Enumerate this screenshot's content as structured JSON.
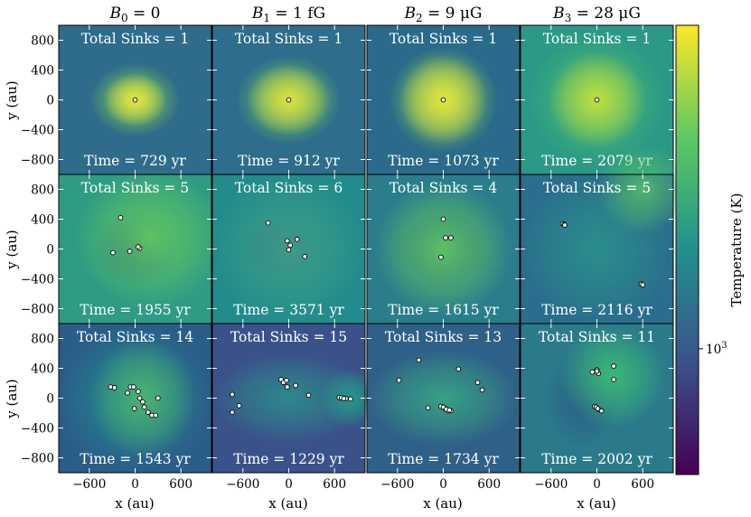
{
  "chart_data": {
    "type": "heatmap",
    "layout": {
      "rows": 3,
      "cols": 4
    },
    "column_titles": [
      "B_0 = 0",
      "B_1 = 1 fG",
      "B_2 = 9 μG",
      "B_3 = 28 μG"
    ],
    "column_title_parts": [
      {
        "sym": "B",
        "sub": "0",
        "rest": " = 0"
      },
      {
        "sym": "B",
        "sub": "1",
        "rest": " = 1 fG"
      },
      {
        "sym": "B",
        "sub": "2",
        "rest": " = 9 μG"
      },
      {
        "sym": "B",
        "sub": "3",
        "rest": " = 28 μG"
      }
    ],
    "xlabel": "x (au)",
    "ylabel": "y (au)",
    "xlim": [
      -1000,
      1000
    ],
    "ylim": [
      -1000,
      1000
    ],
    "xticks": [
      -600,
      0,
      600
    ],
    "yticks": [
      800,
      400,
      0,
      -400,
      -800
    ],
    "colorbar": {
      "label": "Temperature (K)",
      "scale": "log",
      "tick_label": "10",
      "tick_exp": "3",
      "tick_value": 1000,
      "colors": [
        "#440154",
        "#3b528b",
        "#21908d",
        "#5dc963",
        "#fde725"
      ]
    },
    "panels": [
      {
        "row": 0,
        "col": 0,
        "sinks_label": "Total Sinks = 1",
        "time_label": "Time = 729 yr",
        "sinks": [
          [
            0,
            0
          ]
        ]
      },
      {
        "row": 0,
        "col": 1,
        "sinks_label": "Total Sinks = 1",
        "time_label": "Time = 912 yr",
        "sinks": [
          [
            0,
            0
          ]
        ]
      },
      {
        "row": 0,
        "col": 2,
        "sinks_label": "Total Sinks = 1",
        "time_label": "Time = 1073 yr",
        "sinks": [
          [
            0,
            0
          ]
        ]
      },
      {
        "row": 0,
        "col": 3,
        "sinks_label": "Total Sinks = 1",
        "time_label": "Time = 2079 yr",
        "sinks": [
          [
            0,
            0
          ]
        ]
      },
      {
        "row": 1,
        "col": 0,
        "sinks_label": "Total Sinks = 5",
        "time_label": "Time = 1955 yr",
        "sinks": [
          [
            -190,
            420
          ],
          [
            -290,
            -50
          ],
          [
            -70,
            -30
          ],
          [
            60,
            10
          ],
          [
            40,
            30
          ]
        ]
      },
      {
        "row": 1,
        "col": 1,
        "sinks_label": "Total Sinks = 6",
        "time_label": "Time = 3571 yr",
        "sinks": [
          [
            -270,
            350
          ],
          [
            -20,
            110
          ],
          [
            110,
            130
          ],
          [
            20,
            50
          ],
          [
            0,
            -10
          ],
          [
            210,
            -100
          ]
        ]
      },
      {
        "row": 1,
        "col": 2,
        "sinks_label": "Total Sinks = 4",
        "time_label": "Time = 1615 yr",
        "sinks": [
          [
            0,
            400
          ],
          [
            30,
            150
          ],
          [
            100,
            150
          ],
          [
            -30,
            -110
          ]
        ]
      },
      {
        "row": 1,
        "col": 3,
        "sinks_label": "Total Sinks = 5",
        "time_label": "Time = 2116 yr",
        "sinks": [
          [
            -450,
            340
          ],
          [
            -430,
            330
          ],
          [
            -420,
            320
          ],
          [
            580,
            -470
          ],
          [
            600,
            -480
          ]
        ]
      },
      {
        "row": 2,
        "col": 0,
        "sinks_label": "Total Sinks = 14",
        "time_label": "Time = 1543 yr",
        "sinks": [
          [
            -320,
            150
          ],
          [
            -270,
            140
          ],
          [
            -60,
            150
          ],
          [
            -20,
            150
          ],
          [
            -100,
            70
          ],
          [
            40,
            90
          ],
          [
            300,
            0
          ],
          [
            100,
            -50
          ],
          [
            120,
            -120
          ],
          [
            -10,
            -140
          ],
          [
            170,
            -190
          ],
          [
            220,
            -230
          ],
          [
            270,
            -230
          ],
          [
            60,
            0
          ]
        ]
      },
      {
        "row": 2,
        "col": 1,
        "sinks_label": "Total Sinks = 15",
        "time_label": "Time = 1229 yr",
        "sinks": [
          [
            -740,
            50
          ],
          [
            -740,
            -190
          ],
          [
            -650,
            -100
          ],
          [
            -100,
            250
          ],
          [
            -20,
            150
          ],
          [
            90,
            170
          ],
          [
            260,
            40
          ],
          [
            660,
            10
          ],
          [
            700,
            0
          ],
          [
            750,
            -5
          ],
          [
            810,
            -10
          ],
          [
            -70,
            210
          ],
          [
            -30,
            240
          ],
          [
            690,
            5
          ],
          [
            720,
            -5
          ]
        ]
      },
      {
        "row": 2,
        "col": 2,
        "sinks_label": "Total Sinks = 13",
        "time_label": "Time = 1734 yr",
        "sinks": [
          [
            -580,
            240
          ],
          [
            -320,
            510
          ],
          [
            200,
            390
          ],
          [
            450,
            210
          ],
          [
            510,
            110
          ],
          [
            -200,
            -130
          ],
          [
            -30,
            -110
          ],
          [
            20,
            -140
          ],
          [
            60,
            -170
          ],
          [
            100,
            -170
          ],
          [
            0,
            -120
          ],
          [
            40,
            -150
          ],
          [
            80,
            -160
          ]
        ]
      },
      {
        "row": 2,
        "col": 3,
        "sinks_label": "Total Sinks = 11",
        "time_label": "Time = 2002 yr",
        "sinks": [
          [
            -60,
            350
          ],
          [
            0,
            380
          ],
          [
            20,
            330
          ],
          [
            220,
            430
          ],
          [
            220,
            250
          ],
          [
            -30,
            -110
          ],
          [
            40,
            -160
          ],
          [
            -10,
            -120
          ],
          [
            10,
            -140
          ],
          [
            60,
            -170
          ],
          [
            0,
            360
          ]
        ]
      }
    ]
  }
}
